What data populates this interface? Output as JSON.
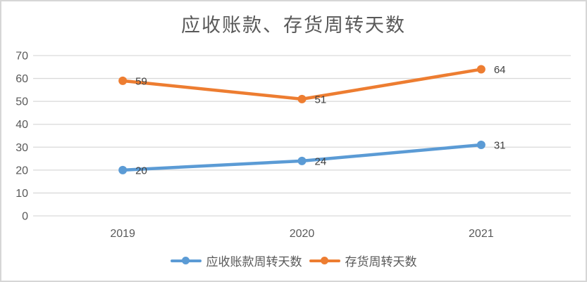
{
  "chart_data": {
    "type": "line",
    "title": "应收账款、存货周转天数",
    "categories": [
      "2019",
      "2020",
      "2021"
    ],
    "series": [
      {
        "name": "应收账款周转天数",
        "values": [
          20,
          24,
          31
        ],
        "color": "#5B9BD5"
      },
      {
        "name": "存货周转天数",
        "values": [
          59,
          51,
          64
        ],
        "color": "#ED7D31"
      }
    ],
    "ylim": [
      0,
      70
    ],
    "ytick_step": 10,
    "grid": true,
    "legend_position": "bottom",
    "data_labels": true
  },
  "colors": {
    "gridline": "#D9D9D9",
    "axis_text": "#595959",
    "title_text": "#595959",
    "data_label_text": "#404040",
    "frame_border": "#D6D6D6",
    "background": "#FFFFFF"
  }
}
